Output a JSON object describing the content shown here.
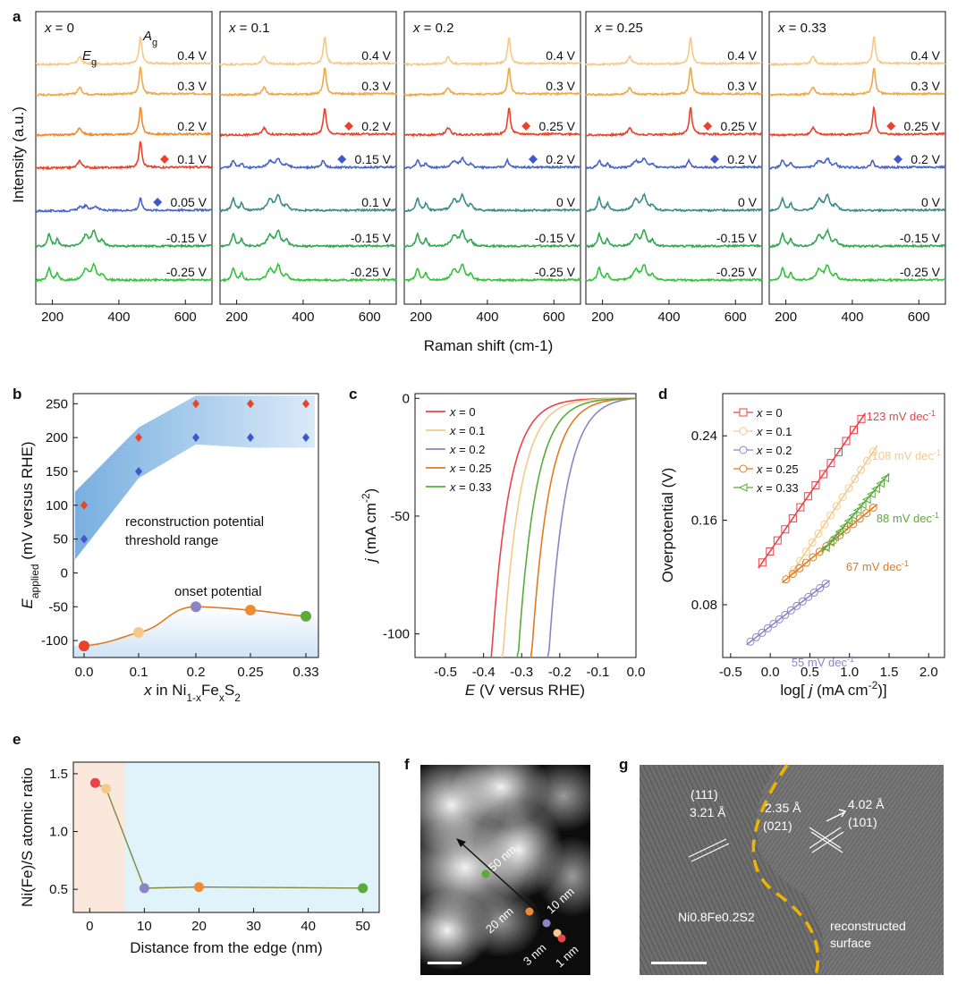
{
  "panel_letters": [
    "a",
    "b",
    "c",
    "d",
    "e",
    "f",
    "g"
  ],
  "chart_data": [
    {
      "panel": "a",
      "type": "line",
      "xlabel": "Raman shift (cm-1)",
      "ylabel": "Intensity (a.u.)",
      "x_ticks": [
        200,
        400,
        600
      ],
      "xlim": [
        150,
        680
      ],
      "peak_labels": {
        "eg": "E",
        "eg_sub": "g",
        "ag": "A",
        "ag_sub": "g"
      },
      "trace_colors": [
        "#f5c98a",
        "#f0a848",
        "#ee8a32",
        "#e8442a",
        "#4a64c8",
        "#3a8c8c",
        "#33a852",
        "#36c23c"
      ],
      "subpanels": [
        {
          "title_var": "x",
          "title_val": " = 0",
          "labels": [
            "0.4 V",
            "0.3 V",
            "0.2 V",
            "0.1 V",
            "0.05 V",
            "-0.15 V",
            "-0.25 V"
          ],
          "colors": [
            "#f5c98a",
            "#f0a848",
            "#ee8a32",
            "#e8442a",
            "#4a64c8",
            "#33a852",
            "#36c23c"
          ],
          "marker_red": 3,
          "marker_blue": 4,
          "recon": 4
        },
        {
          "title_var": "x",
          "title_val": " = 0.1",
          "labels": [
            "0.4 V",
            "0.3 V",
            "0.2 V",
            "0.15 V",
            "0.1 V",
            "-0.15 V",
            "-0.25 V"
          ],
          "colors": [
            "#f5c98a",
            "#f0a848",
            "#e8442a",
            "#4a64c8",
            "#3a8c8c",
            "#33a852",
            "#36c23c"
          ],
          "marker_red": 2,
          "marker_blue": 3,
          "recon": 3
        },
        {
          "title_var": "x",
          "title_val": " = 0.2",
          "labels": [
            "0.4 V",
            "0.3 V",
            "0.25 V",
            "0.2 V",
            "0 V",
            "-0.15 V",
            "-0.25 V"
          ],
          "colors": [
            "#f5c98a",
            "#f0a848",
            "#e8442a",
            "#4a64c8",
            "#3a8c8c",
            "#33a852",
            "#36c23c"
          ],
          "marker_red": 2,
          "marker_blue": 3,
          "recon": 3
        },
        {
          "title_var": "x",
          "title_val": " = 0.25",
          "labels": [
            "0.4 V",
            "0.3 V",
            "0.25 V",
            "0.2 V",
            "0 V",
            "-0.15 V",
            "-0.25 V"
          ],
          "colors": [
            "#f5c98a",
            "#f0a848",
            "#e8442a",
            "#4a64c8",
            "#3a8c8c",
            "#33a852",
            "#36c23c"
          ],
          "marker_red": 2,
          "marker_blue": 3,
          "recon": 3
        },
        {
          "title_var": "x",
          "title_val": " = 0.33",
          "labels": [
            "0.4 V",
            "0.3 V",
            "0.25 V",
            "0.2 V",
            "0 V",
            "-0.15 V",
            "-0.25 V"
          ],
          "colors": [
            "#f5c98a",
            "#f0a848",
            "#e8442a",
            "#4a64c8",
            "#3a8c8c",
            "#33a852",
            "#36c23c"
          ],
          "marker_red": 2,
          "marker_blue": 3,
          "recon": 3
        }
      ]
    },
    {
      "panel": "b",
      "type": "scatter",
      "x": [
        0.0,
        0.1,
        0.2,
        0.25,
        0.33
      ],
      "x_ticks": [
        "0.0",
        "0.1",
        "0.2",
        "0.25",
        "0.33"
      ],
      "upper_threshold": [
        100,
        200,
        250,
        250,
        250
      ],
      "lower_threshold": [
        50,
        150,
        200,
        200,
        200
      ],
      "onset_potential": [
        -108,
        -88,
        -50,
        -55,
        -64
      ],
      "onset_colors": [
        "#e8442a",
        "#f5c98a",
        "#8a86c6",
        "#ee8a32",
        "#5aab3a"
      ],
      "ylim": [
        -125,
        265
      ],
      "y_ticks": [
        -100,
        -50,
        0,
        50,
        100,
        150,
        200,
        250
      ],
      "ylabel_main": "E",
      "ylabel_sub": "applied",
      "ylabel_rest": " (mV versus RHE)",
      "xlabel": "x in Ni1-xFexS2",
      "annotation_range": [
        "reconstruction potential",
        "threshold range"
      ],
      "annotation_onset": "onset  potential"
    },
    {
      "panel": "c",
      "type": "line",
      "xlabel": "E (V versus RHE)",
      "ylabel": "j (mA cm-2)",
      "xlim": [
        -0.58,
        0.0
      ],
      "ylim": [
        -110,
        2
      ],
      "x_ticks": [
        "-0.5",
        "-0.4",
        "-0.3",
        "-0.2",
        "-0.1",
        "0.0"
      ],
      "y_ticks": [
        "0",
        "-50",
        "-100"
      ],
      "series": [
        {
          "name": "x = 0",
          "color": "#e8444a",
          "e_at_minus100": -0.375
        },
        {
          "name": "x = 0.1",
          "color": "#f5c98a",
          "e_at_minus100": -0.345
        },
        {
          "name": "x = 0.2",
          "color": "#8a86c6",
          "e_at_minus100": -0.225
        },
        {
          "name": "x = 0.25",
          "color": "#e07b22",
          "e_at_minus100": -0.27
        },
        {
          "name": "x = 0.33",
          "color": "#5aab3a",
          "e_at_minus100": -0.305
        }
      ]
    },
    {
      "panel": "d",
      "type": "scatter",
      "xlabel": "log[ j (mA cm-2)]",
      "ylabel": "Overpotential (V)",
      "xlim": [
        -0.6,
        2.2
      ],
      "ylim": [
        0.03,
        0.28
      ],
      "x_ticks": [
        "-0.5",
        "0.0",
        "0.5",
        "1.0",
        "1.5",
        "2.0"
      ],
      "y_ticks": [
        "0.08",
        "0.16",
        "0.24"
      ],
      "series": [
        {
          "name": "x = 0",
          "color": "#e8444a",
          "slope_label": "123 mV dec-1",
          "x": [
            -0.1,
            1.15
          ],
          "y": [
            0.12,
            0.256
          ]
        },
        {
          "name": "x = 0.1",
          "color": "#f5c98a",
          "slope_label": "108 mV dec-1",
          "x": [
            0.3,
            1.3
          ],
          "y": [
            0.113,
            0.225
          ]
        },
        {
          "name": "x = 0.2",
          "color": "#8a86c6",
          "slope_label": "55 mV dec-1",
          "x": [
            -0.25,
            0.7
          ],
          "y": [
            0.045,
            0.1
          ]
        },
        {
          "name": "x = 0.25",
          "color": "#e07b22",
          "slope_label": "67 mV dec-1",
          "x": [
            0.2,
            1.3
          ],
          "y": [
            0.104,
            0.172
          ]
        },
        {
          "name": "x = 0.33",
          "color": "#5aab3a",
          "slope_label": "88 mV dec-1",
          "x": [
            0.7,
            1.45
          ],
          "y": [
            0.134,
            0.2
          ]
        }
      ]
    },
    {
      "panel": "e",
      "type": "line",
      "xlabel": "Distance from the edge (nm)",
      "ylabel": "Ni(Fe)/S atomic ratio",
      "x": [
        1,
        3,
        10,
        20,
        50
      ],
      "values": [
        1.42,
        1.37,
        0.51,
        0.52,
        0.51
      ],
      "colors": [
        "#e8444a",
        "#f5c98a",
        "#8a86c6",
        "#ee8a32",
        "#5aab3a"
      ],
      "xlim": [
        -3,
        53
      ],
      "ylim": [
        0.3,
        1.6
      ],
      "x_ticks": [
        "0",
        "10",
        "20",
        "30",
        "40",
        "50"
      ],
      "y_ticks": [
        "0.5",
        "1.0",
        "1.5"
      ]
    }
  ],
  "panel_f": {
    "labels": [
      "50 nm",
      "20 nm",
      "10 nm",
      "3 nm",
      "1 nm"
    ]
  },
  "panel_g": {
    "labels": [
      "(111)",
      "3.21 Å",
      "2.35 Å",
      "(021)",
      "4.02 Å",
      "(101)",
      "Ni0.8Fe0.2S2",
      "reconstructed",
      "surface"
    ]
  }
}
